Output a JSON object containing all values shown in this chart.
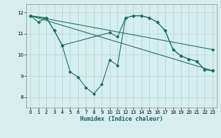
{
  "xlabel": "Humidex (Indice chaleur)",
  "xlim": [
    -0.5,
    23.5
  ],
  "ylim": [
    7.5,
    12.4
  ],
  "xticks": [
    0,
    1,
    2,
    3,
    4,
    5,
    6,
    7,
    8,
    9,
    10,
    11,
    12,
    13,
    14,
    15,
    16,
    17,
    18,
    19,
    20,
    21,
    22,
    23
  ],
  "yticks": [
    8,
    9,
    10,
    11,
    12
  ],
  "background_color": "#d6eeee",
  "grid_major_color": "#b8d8d8",
  "grid_minor_color": "#c8e4e4",
  "line_color": "#1a7060",
  "figsize": [
    3.2,
    2.0
  ],
  "dpi": 100,
  "line1_x": [
    0,
    1,
    2,
    3,
    4,
    5,
    6,
    7,
    8,
    9,
    10,
    11,
    12,
    13,
    14,
    15,
    16,
    17,
    18,
    19,
    20,
    21,
    22,
    23
  ],
  "line1_y": [
    11.85,
    11.55,
    11.75,
    11.15,
    10.45,
    9.2,
    8.95,
    8.45,
    8.15,
    8.6,
    9.75,
    9.5,
    11.75,
    11.85,
    11.85,
    11.75,
    11.55,
    11.15,
    10.25,
    9.95,
    9.8,
    9.7,
    9.3,
    9.25
  ],
  "line2_x": [
    0,
    2,
    3,
    4,
    10,
    11,
    12,
    13,
    14,
    15,
    16,
    17,
    18,
    19,
    20,
    21,
    22,
    23
  ],
  "line2_y": [
    11.85,
    11.75,
    11.15,
    10.45,
    11.05,
    10.85,
    11.75,
    11.85,
    11.85,
    11.75,
    11.55,
    11.15,
    10.25,
    9.95,
    9.8,
    9.7,
    9.3,
    9.25
  ],
  "line3_x": [
    0,
    23
  ],
  "line3_y": [
    11.85,
    9.25
  ],
  "line4_x": [
    0,
    23
  ],
  "line4_y": [
    11.85,
    10.25
  ]
}
